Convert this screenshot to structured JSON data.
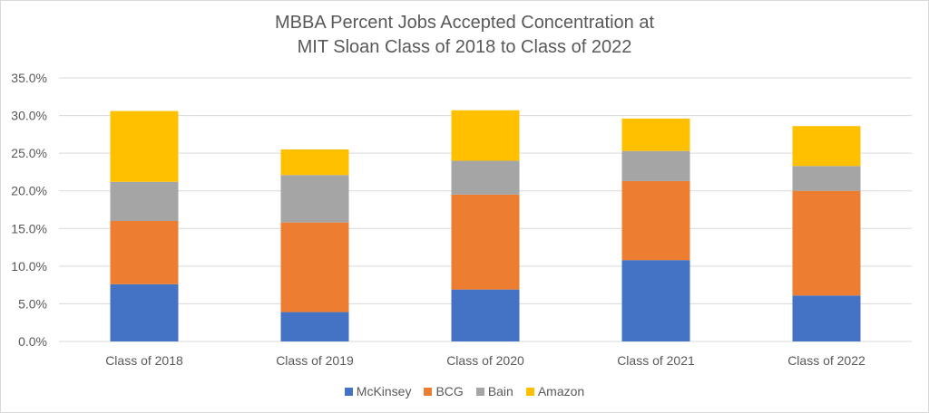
{
  "chart_data": {
    "type": "bar",
    "stacked": true,
    "title": "MBBA Percent Jobs Accepted Concentration at MIT Sloan Class of 2018 to Class of 2022",
    "title_lines": [
      "MBBA Percent Jobs Accepted Concentration at",
      "MIT Sloan Class of 2018 to Class of 2022"
    ],
    "xlabel": "",
    "ylabel": "",
    "categories": [
      "Class of 2018",
      "Class of 2019",
      "Class of 2020",
      "Class of 2021",
      "Class of 2022"
    ],
    "series": [
      {
        "name": "McKinsey",
        "color": "#4472c4",
        "values": [
          7.6,
          3.9,
          6.9,
          10.8,
          6.1
        ]
      },
      {
        "name": "BCG",
        "color": "#ed7d31",
        "values": [
          8.4,
          11.9,
          12.6,
          10.5,
          13.9
        ]
      },
      {
        "name": "Bain",
        "color": "#a5a5a5",
        "values": [
          5.2,
          6.3,
          4.5,
          4.0,
          3.3
        ]
      },
      {
        "name": "Amazon",
        "color": "#ffc000",
        "values": [
          9.4,
          3.4,
          6.7,
          4.3,
          5.3
        ]
      }
    ],
    "ylim": [
      0,
      35
    ],
    "yticks": [
      "0.0%",
      "5.0%",
      "10.0%",
      "15.0%",
      "20.0%",
      "25.0%",
      "30.0%",
      "35.0%"
    ],
    "grid": true,
    "legend_position": "bottom"
  }
}
